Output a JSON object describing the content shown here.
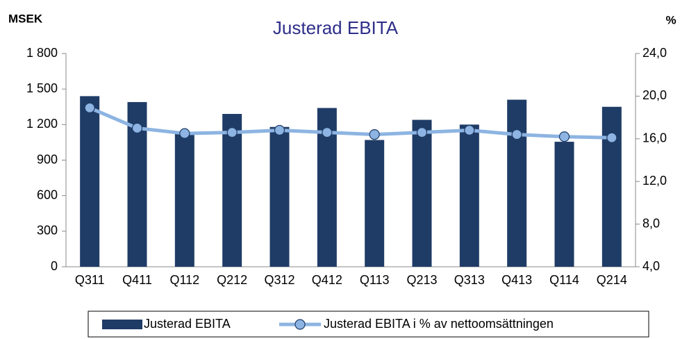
{
  "chart_data": {
    "type": "bar-line",
    "title": "Justerad EBITA",
    "y_label": "MSEK",
    "y2_label": "%",
    "categories": [
      "Q311",
      "Q411",
      "Q112",
      "Q212",
      "Q312",
      "Q412",
      "Q113",
      "Q213",
      "Q313",
      "Q413",
      "Q114",
      "Q214"
    ],
    "series": [
      {
        "name": "Justerad EBITA",
        "type": "bar",
        "color": "#1f3c66",
        "values": [
          1440,
          1390,
          1120,
          1290,
          1180,
          1340,
          1070,
          1240,
          1200,
          1410,
          1055,
          1350
        ]
      },
      {
        "name": "Justerad EBITA i % av nettoomsättningen",
        "type": "line",
        "axis": "y2",
        "color": "#8db4e2",
        "values": [
          18.9,
          17.0,
          16.5,
          16.6,
          16.8,
          16.6,
          16.4,
          16.6,
          16.8,
          16.4,
          16.2,
          16.1
        ]
      }
    ],
    "ylim": [
      0,
      1800
    ],
    "yticks": [
      0,
      300,
      600,
      900,
      {
        "value": 1200,
        "label": "1 200"
      },
      {
        "value": 1500,
        "label": "1 500"
      },
      {
        "value": 1800,
        "label": "1 800"
      }
    ],
    "y2lim": [
      4,
      24
    ],
    "y2ticks": [
      {
        "value": 4,
        "label": "4,0"
      },
      {
        "value": 8,
        "label": "8,0"
      },
      {
        "value": 12,
        "label": "12,0"
      },
      {
        "value": 16,
        "label": "16,0"
      },
      {
        "value": 20,
        "label": "20,0"
      },
      {
        "value": 24,
        "label": "24,0"
      }
    ],
    "legend": "bottom"
  }
}
